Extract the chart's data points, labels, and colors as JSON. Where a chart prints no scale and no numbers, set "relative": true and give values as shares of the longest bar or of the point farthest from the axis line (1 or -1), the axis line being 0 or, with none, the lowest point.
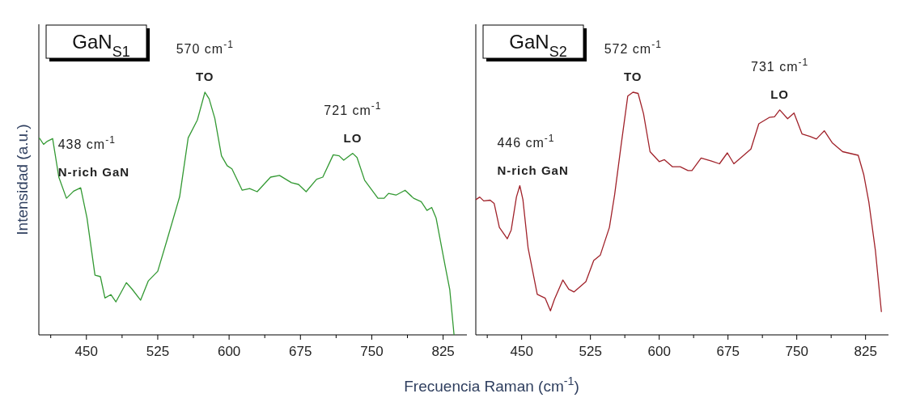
{
  "chart_data": [
    {
      "type": "line",
      "title": "GaN$_{S1}$",
      "xlabel": "Frecuencia Raman (cm$^{-1}$)",
      "ylabel": "Intensidad (a.u.)",
      "relative": true,
      "xlim": [
        400,
        850
      ],
      "xticks": [
        {
          "value": 412.5,
          "label": null
        },
        450,
        {
          "value": 487.5,
          "label": null
        },
        525,
        {
          "value": 562.5,
          "label": null
        },
        600,
        {
          "value": 637.5,
          "label": null
        },
        675,
        {
          "value": 712.5,
          "label": null
        },
        750,
        {
          "value": 787.5,
          "label": null
        },
        825
      ],
      "series": [
        {
          "color": "#339933",
          "x": [
            400.4,
            405,
            409,
            414.5,
            421,
            429,
            436.5,
            444,
            450.6,
            459,
            464.7,
            469.5,
            475.7,
            481,
            492,
            497.7,
            507,
            515,
            525,
            535,
            548,
            557,
            566.7,
            574.6,
            579,
            585,
            592,
            598,
            603,
            613.8,
            621.6,
            629.5,
            643.6,
            653,
            665.6,
            673,
            681,
            692,
            698.5,
            709.5,
            715.7,
            720.5,
            730,
            734.5,
            742.5,
            756.5,
            763,
            767.6,
            775.5,
            785,
            794,
            802,
            808,
            813,
            817.6,
            827,
            832,
            836.5
          ],
          "values": [
            0.812,
            0.785,
            0.798,
            0.809,
            0.65,
            0.563,
            0.592,
            0.606,
            0.482,
            0.246,
            0.24,
            0.152,
            0.166,
            0.136,
            0.215,
            0.19,
            0.143,
            0.222,
            0.262,
            0.394,
            0.569,
            0.812,
            0.886,
            1.0,
            0.973,
            0.892,
            0.738,
            0.697,
            0.684,
            0.596,
            0.603,
            0.59,
            0.65,
            0.657,
            0.627,
            0.62,
            0.59,
            0.641,
            0.65,
            0.742,
            0.738,
            0.72,
            0.748,
            0.731,
            0.637,
            0.563,
            0.563,
            0.583,
            0.576,
            0.596,
            0.563,
            0.549,
            0.513,
            0.525,
            0.482,
            0.287,
            0.186,
            0
          ]
        }
      ],
      "annotations": [
        {
          "text": "438 cm$^{-1}$",
          "x": 444,
          "y": 0.606
        },
        {
          "text": "N-rich GaN",
          "x": 444,
          "y": 0.606
        },
        {
          "text": "570 cm$^{-1}$",
          "x": 574.6,
          "y": 1.0
        },
        {
          "text": "TO",
          "x": 574.6,
          "y": 1.0
        },
        {
          "text": "721 cm$^{-1}$",
          "x": 730,
          "y": 0.748
        },
        {
          "text": "LO",
          "x": 730,
          "y": 0.748
        }
      ]
    },
    {
      "type": "line",
      "title": "GaN$_{S2}$",
      "relative": true,
      "xlim": [
        400,
        850
      ],
      "xticks": [
        {
          "value": 412.5,
          "label": null
        },
        450,
        {
          "value": 487.5,
          "label": null
        },
        525,
        {
          "value": 562.5,
          "label": null
        },
        600,
        {
          "value": 637.5,
          "label": null
        },
        675,
        {
          "value": 712.5,
          "label": null
        },
        750,
        {
          "value": 787.5,
          "label": null
        },
        825
      ],
      "series": [
        {
          "color": "#a0222a",
          "x": [
            400,
            404.3,
            408.6,
            415.7,
            420,
            425.7,
            434.3,
            438.6,
            444.3,
            448,
            451.4,
            457,
            467,
            475.7,
            481.4,
            485.7,
            494.9,
            501.4,
            507,
            520,
            528.6,
            535.7,
            545.7,
            551.4,
            558.6,
            565.7,
            571.4,
            577,
            582.9,
            590,
            600,
            605.7,
            614.3,
            622.9,
            631.4,
            635.7,
            645.7,
            657,
            665.7,
            674.3,
            681.4,
            700,
            708.6,
            720,
            725.7,
            731.4,
            740,
            747,
            755.7,
            764.3,
            771.4,
            780,
            788.6,
            800,
            805.7,
            817,
            823,
            828.6,
            835.7,
            842.3
          ],
          "values": [
            0.557,
            0.568,
            0.552,
            0.555,
            0.542,
            0.443,
            0.396,
            0.432,
            0.568,
            0.615,
            0.557,
            0.359,
            0.167,
            0.151,
            0.099,
            0.146,
            0.226,
            0.188,
            0.177,
            0.219,
            0.307,
            0.328,
            0.443,
            0.578,
            0.786,
            0.984,
            1.0,
            0.995,
            0.911,
            0.755,
            0.714,
            0.722,
            0.693,
            0.693,
            0.677,
            0.677,
            0.729,
            0.716,
            0.705,
            0.75,
            0.705,
            0.766,
            0.87,
            0.896,
            0.899,
            0.927,
            0.891,
            0.914,
            0.828,
            0.818,
            0.807,
            0.841,
            0.792,
            0.755,
            0.75,
            0.74,
            0.661,
            0.547,
            0.349,
            0.094
          ]
        }
      ],
      "annotations": [
        {
          "text": "446 cm$^{-1}$",
          "x": 448,
          "y": 0.615
        },
        {
          "text": "N-rich GaN",
          "x": 448,
          "y": 0.615
        },
        {
          "text": "572 cm$^{-1}$",
          "x": 571.4,
          "y": 1.0
        },
        {
          "text": "TO",
          "x": 571.4,
          "y": 1.0
        },
        {
          "text": "731 cm$^{-1}$",
          "x": 731.4,
          "y": 0.927
        },
        {
          "text": "LO",
          "x": 731.4,
          "y": 0.927
        }
      ]
    }
  ]
}
